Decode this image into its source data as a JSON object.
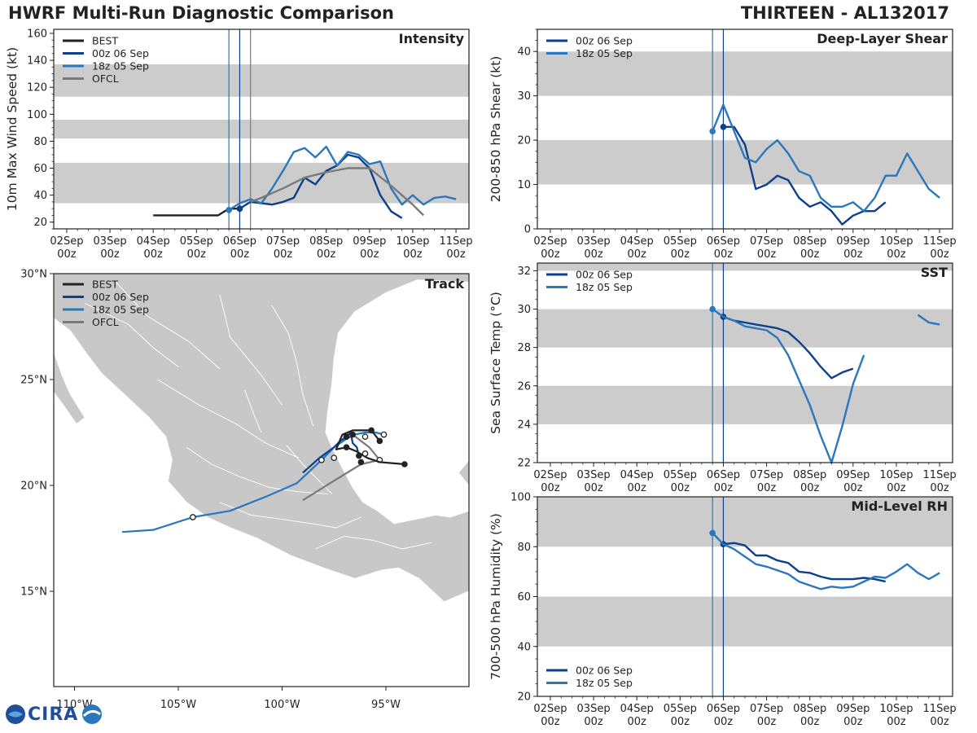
{
  "header": {
    "left_title": "HWRF Multi-Run Diagnostic Comparison",
    "right_title": "THIRTEEN - AL132017"
  },
  "logo": {
    "text": "CIRA"
  },
  "colors": {
    "best": "#222222",
    "r00": "#0c3f8c",
    "r18": "#2a77bd",
    "ofcl": "#7a7a7a",
    "band": "#cccccc",
    "land": "#c8c8c8"
  },
  "legend_labels": {
    "best": "BEST",
    "r00": "00z 06 Sep",
    "r18": "18z 05 Sep",
    "ofcl": "OFCL"
  },
  "time_ticks": [
    {
      "day": 2,
      "top": "02Sep",
      "bottom": "00z"
    },
    {
      "day": 3,
      "top": "03Sep",
      "bottom": "00z"
    },
    {
      "day": 4,
      "top": "04Sep",
      "bottom": "00z"
    },
    {
      "day": 5,
      "top": "05Sep",
      "bottom": "00z"
    },
    {
      "day": 6,
      "top": "06Sep",
      "bottom": "00z"
    },
    {
      "day": 7,
      "top": "07Sep",
      "bottom": "00z"
    },
    {
      "day": 8,
      "top": "08Sep",
      "bottom": "00z"
    },
    {
      "day": 9,
      "top": "09Sep",
      "bottom": "00z"
    },
    {
      "day": 10,
      "top": "10Sep",
      "bottom": "00z"
    },
    {
      "day": 11,
      "top": "11Sep",
      "bottom": "00z"
    }
  ],
  "chart_data": [
    {
      "id": "intensity",
      "type": "line",
      "title": "Intensity",
      "ylabel": "10m Max Wind Speed (kt)",
      "xlim": [
        1.7,
        11.3
      ],
      "ylim": [
        15,
        163
      ],
      "yticks": [
        20,
        40,
        60,
        80,
        100,
        120,
        140,
        160
      ],
      "bands": [
        [
          34,
          64
        ],
        [
          82,
          96
        ],
        [
          113,
          137
        ]
      ],
      "vlines": [
        {
          "x": 5.75,
          "series": "r18"
        },
        {
          "x": 6.0,
          "series": "r00"
        },
        {
          "x": 6.25,
          "series": "ofcl"
        }
      ],
      "legend": [
        "best",
        "r00",
        "r18",
        "ofcl"
      ],
      "series": [
        {
          "key": "best",
          "name": "BEST",
          "x": [
            4.0,
            4.5,
            5.0,
            5.5,
            5.75,
            6.0
          ],
          "y": [
            25,
            25,
            25,
            25,
            30,
            30
          ],
          "markers": [
            {
              "x": 6.0,
              "y": 30
            }
          ]
        },
        {
          "key": "r00",
          "name": "00z 06 Sep",
          "x": [
            6.0,
            6.25,
            6.5,
            6.75,
            7.0,
            7.25,
            7.5,
            7.75,
            8.0,
            8.25,
            8.5,
            8.75,
            9.0,
            9.25,
            9.5,
            9.75
          ],
          "y": [
            30,
            35,
            34,
            33,
            35,
            38,
            53,
            48,
            58,
            62,
            70,
            68,
            60,
            40,
            28,
            23
          ],
          "markers": [
            {
              "x": 6.0,
              "y": 30
            }
          ]
        },
        {
          "key": "r18",
          "name": "18z 05 Sep",
          "x": [
            5.75,
            6.0,
            6.25,
            6.5,
            6.75,
            7.0,
            7.25,
            7.5,
            7.75,
            8.0,
            8.25,
            8.5,
            8.75,
            9.0,
            9.25,
            9.5,
            9.75,
            10.0,
            10.25,
            10.5,
            10.75,
            11.0
          ],
          "y": [
            29,
            34,
            37,
            34,
            45,
            58,
            72,
            75,
            68,
            76,
            62,
            72,
            70,
            63,
            65,
            45,
            33,
            40,
            33,
            38,
            39,
            37
          ],
          "markers": [
            {
              "x": 5.75,
              "y": 29
            }
          ]
        },
        {
          "key": "ofcl",
          "name": "OFCL",
          "x": [
            6.25,
            6.5,
            7.0,
            7.5,
            8.0,
            8.5,
            9.0,
            9.5,
            10.0,
            10.25
          ],
          "y": [
            35,
            38,
            45,
            53,
            57,
            60,
            60,
            47,
            33,
            25
          ],
          "markers": []
        }
      ]
    },
    {
      "id": "shear",
      "type": "line",
      "title": "Deep-Layer Shear",
      "ylabel": "200-850 hPa Shear (kt)",
      "xlim": [
        1.7,
        11.3
      ],
      "ylim": [
        0,
        45
      ],
      "yticks": [
        0,
        10,
        20,
        30,
        40
      ],
      "bands": [
        [
          10,
          20
        ],
        [
          30,
          40
        ]
      ],
      "vlines": [
        {
          "x": 5.75,
          "series": "r18"
        },
        {
          "x": 6.0,
          "series": "r00"
        }
      ],
      "legend": [
        "r00",
        "r18"
      ],
      "series": [
        {
          "key": "r00",
          "name": "00z 06 Sep",
          "x": [
            6.0,
            6.25,
            6.5,
            6.75,
            7.0,
            7.25,
            7.5,
            7.75,
            8.0,
            8.25,
            8.5,
            8.75,
            9.0,
            9.25,
            9.5,
            9.75
          ],
          "y": [
            23,
            23,
            19,
            9,
            10,
            12,
            11,
            7,
            5,
            6,
            4,
            1,
            3,
            4,
            4,
            6
          ],
          "markers": [
            {
              "x": 6.0,
              "y": 23
            }
          ]
        },
        {
          "key": "r18",
          "name": "18z 05 Sep",
          "x": [
            5.75,
            6.0,
            6.25,
            6.5,
            6.75,
            7.0,
            7.25,
            7.5,
            7.75,
            8.0,
            8.25,
            8.5,
            8.75,
            9.0,
            9.25,
            9.5,
            9.75,
            10.0,
            10.25,
            10.5,
            10.75,
            11.0
          ],
          "y": [
            22,
            28,
            22,
            16,
            15,
            18,
            20,
            17,
            13,
            12,
            7,
            5,
            5,
            6,
            4,
            7,
            12,
            12,
            17,
            13,
            9,
            7
          ],
          "markers": [
            {
              "x": 5.75,
              "y": 22
            }
          ]
        }
      ]
    },
    {
      "id": "sst",
      "type": "line",
      "title": "SST",
      "ylabel": "Sea Surface Temp (°C)",
      "xlim": [
        1.7,
        11.3
      ],
      "ylim": [
        22,
        32.4
      ],
      "yticks": [
        22,
        24,
        26,
        28,
        30,
        32
      ],
      "bands": [
        [
          24,
          26
        ],
        [
          28,
          30
        ],
        [
          32,
          32.4
        ]
      ],
      "vlines": [
        {
          "x": 5.75,
          "series": "r18"
        },
        {
          "x": 6.0,
          "series": "r00"
        }
      ],
      "legend": [
        "r00",
        "r18"
      ],
      "series": [
        {
          "key": "r00",
          "name": "00z 06 Sep",
          "x": [
            6.0,
            6.25,
            6.5,
            6.75,
            7.0,
            7.25,
            7.5,
            7.75,
            8.0,
            8.25,
            8.5,
            8.75,
            9.0
          ],
          "y": [
            29.6,
            29.4,
            29.3,
            29.2,
            29.1,
            29.0,
            28.8,
            28.3,
            27.7,
            27.0,
            26.4,
            26.7,
            26.9
          ],
          "markers": [
            {
              "x": 6.0,
              "y": 29.6
            }
          ]
        },
        {
          "key": "r18",
          "name": "18z 05 Sep",
          "x": [
            5.75,
            6.0,
            6.25,
            6.5,
            6.75,
            7.0,
            7.25,
            7.5,
            7.75,
            8.0,
            8.25,
            8.5,
            8.75,
            9.0,
            9.25
          ],
          "y": [
            30.0,
            29.6,
            29.4,
            29.1,
            29.0,
            28.9,
            28.5,
            27.6,
            26.3,
            25.0,
            23.4,
            22.0,
            23.9,
            26.1,
            27.6
          ],
          "markers": [
            {
              "x": 5.75,
              "y": 30.0
            }
          ]
        },
        {
          "key": "r18",
          "name": "18z 05 Sep",
          "x": [
            10.5,
            10.75,
            11.0
          ],
          "y": [
            29.7,
            29.3,
            29.2
          ],
          "markers": []
        }
      ]
    },
    {
      "id": "rh",
      "type": "line",
      "title": "Mid-Level RH",
      "ylabel": "700-500 hPa Humidity (%)",
      "xlim": [
        1.7,
        11.3
      ],
      "ylim": [
        20,
        100
      ],
      "yticks": [
        20,
        40,
        60,
        80,
        100
      ],
      "bands": [
        [
          40,
          60
        ],
        [
          80,
          100
        ]
      ],
      "vlines": [
        {
          "x": 5.75,
          "series": "r18"
        },
        {
          "x": 6.0,
          "series": "r00"
        }
      ],
      "legend": [
        "r00",
        "r18"
      ],
      "series": [
        {
          "key": "r00",
          "name": "00z 06 Sep",
          "x": [
            6.0,
            6.25,
            6.5,
            6.75,
            7.0,
            7.25,
            7.5,
            7.75,
            8.0,
            8.25,
            8.5,
            8.75,
            9.0,
            9.25,
            9.5,
            9.75
          ],
          "y": [
            81,
            81.5,
            80.5,
            76.5,
            76.5,
            74.5,
            73.5,
            70,
            69.5,
            68,
            67,
            67,
            67,
            67.5,
            67,
            66
          ],
          "markers": [
            {
              "x": 6.0,
              "y": 81
            }
          ]
        },
        {
          "key": "r18",
          "name": "18z 05 Sep",
          "x": [
            5.75,
            6.0,
            6.25,
            6.5,
            6.75,
            7.0,
            7.25,
            7.5,
            7.75,
            8.0,
            8.25,
            8.5,
            8.75,
            9.0,
            9.25,
            9.5,
            9.75,
            10.0,
            10.25,
            10.5,
            10.75,
            11.0
          ],
          "y": [
            85.5,
            81,
            79,
            76,
            73,
            72,
            70.5,
            69,
            66,
            64.5,
            63,
            64,
            63.5,
            64,
            66,
            68,
            67.5,
            70,
            73,
            69.5,
            67,
            69.5
          ],
          "markers": [
            {
              "x": 5.75,
              "y": 85.5
            }
          ]
        }
      ]
    },
    {
      "id": "track",
      "type": "map",
      "title": "Track",
      "lon_range": [
        -111,
        -91
      ],
      "lat_range": [
        10.5,
        30
      ],
      "xticks": [
        {
          "lon": -110,
          "label": "110°W"
        },
        {
          "lon": -105,
          "label": "105°W"
        },
        {
          "lon": -100,
          "label": "100°W"
        },
        {
          "lon": -95,
          "label": "95°W"
        }
      ],
      "yticks": [
        {
          "lat": 15,
          "label": "15°N"
        },
        {
          "lat": 20,
          "label": "20°N"
        },
        {
          "lat": 25,
          "label": "25°N"
        },
        {
          "lat": 30,
          "label": "30°N"
        }
      ],
      "legend": [
        "best",
        "r00",
        "r18",
        "ofcl"
      ],
      "series": [
        {
          "key": "best",
          "name": "BEST",
          "lon": [
            -94.1,
            -95.3,
            -95.9,
            -96.4,
            -96.9,
            -97.4,
            -97.1,
            -96.6,
            -96.2,
            -95.7,
            -95.3
          ],
          "lat": [
            21.0,
            21.1,
            21.3,
            21.6,
            21.8,
            21.7,
            22.4,
            22.6,
            22.6,
            22.6,
            22.1
          ],
          "filled": [
            [
              -94.1,
              21.0
            ],
            [
              -96.2,
              21.1
            ],
            [
              -96.9,
              21.8
            ],
            [
              -96.6,
              22.4
            ],
            [
              -95.7,
              22.6
            ],
            [
              -95.3,
              22.1
            ]
          ],
          "open": [
            [
              -96.0,
              21.5
            ]
          ]
        },
        {
          "key": "r00",
          "name": "00z 06 Sep",
          "lon": [
            -99.0,
            -98.2,
            -97.5,
            -97.2,
            -96.9,
            -96.7,
            -96.6,
            -96.4,
            -96.3
          ],
          "lat": [
            20.6,
            21.3,
            21.8,
            22.1,
            22.3,
            22.5,
            22.0,
            21.8,
            21.4
          ],
          "filled": [
            [
              -96.9,
              22.3
            ],
            [
              -96.3,
              21.4
            ]
          ],
          "open": []
        },
        {
          "key": "r18",
          "name": "18z 05 Sep",
          "lon": [
            -107.7,
            -106.2,
            -104.3,
            -102.5,
            -100.7,
            -99.3,
            -98.1,
            -97.5,
            -96.9,
            -96.5,
            -96.0,
            -95.5,
            -95.1
          ],
          "lat": [
            17.8,
            17.9,
            18.5,
            18.8,
            19.5,
            20.1,
            21.2,
            21.8,
            22.2,
            22.4,
            22.5,
            22.5,
            22.4
          ],
          "filled": [
            [
              -96.9,
              22.3
            ]
          ],
          "open": [
            [
              -104.3,
              18.5
            ],
            [
              -98.1,
              21.2
            ],
            [
              -97.5,
              21.3
            ],
            [
              -96.0,
              22.3
            ],
            [
              -95.1,
              22.4
            ]
          ]
        },
        {
          "key": "ofcl",
          "name": "OFCL",
          "lon": [
            -99.0,
            -97.7,
            -96.2,
            -95.3,
            -95.8,
            -96.6
          ],
          "lat": [
            19.3,
            20.1,
            21.0,
            21.2,
            21.8,
            22.4
          ],
          "filled": [],
          "open": [
            [
              -95.3,
              21.2
            ]
          ]
        }
      ]
    }
  ]
}
